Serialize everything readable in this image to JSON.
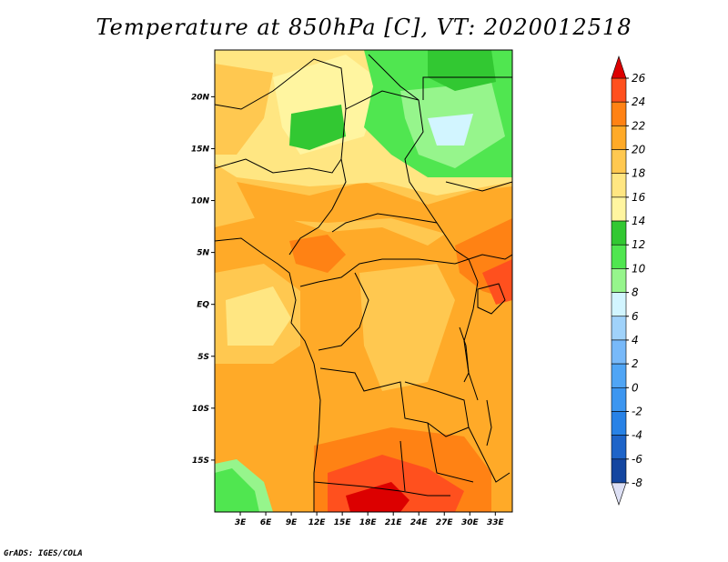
{
  "title": "Temperature at 850hPa [C], VT: 2020012518",
  "credit": "GrADS: IGES/COLA",
  "map": {
    "lat_ticks": [
      {
        "label": "20N",
        "value": 20
      },
      {
        "label": "15N",
        "value": 15
      },
      {
        "label": "10N",
        "value": 10
      },
      {
        "label": "5N",
        "value": 5
      },
      {
        "label": "EQ",
        "value": 0
      },
      {
        "label": "5S",
        "value": -5
      },
      {
        "label": "10S",
        "value": -10
      },
      {
        "label": "15S",
        "value": -15
      }
    ],
    "lon_ticks": [
      {
        "label": "3E",
        "value": 3
      },
      {
        "label": "6E",
        "value": 6
      },
      {
        "label": "9E",
        "value": 9
      },
      {
        "label": "12E",
        "value": 12
      },
      {
        "label": "15E",
        "value": 15
      },
      {
        "label": "18E",
        "value": 18
      },
      {
        "label": "21E",
        "value": 21
      },
      {
        "label": "24E",
        "value": 24
      },
      {
        "label": "27E",
        "value": 27
      },
      {
        "label": "30E",
        "value": 30
      },
      {
        "label": "33E",
        "value": 33
      }
    ],
    "lon_range": [
      0,
      35
    ],
    "lat_range": [
      -20,
      24.5
    ]
  },
  "colorbar": {
    "levels": [
      "-8",
      "-6",
      "-4",
      "-2",
      "0",
      "2",
      "4",
      "6",
      "8",
      "10",
      "12",
      "14",
      "16",
      "18",
      "20",
      "22",
      "24",
      "26"
    ],
    "colors": [
      "#0b1e7a",
      "#1446a0",
      "#1e64c8",
      "#2882e6",
      "#3c96f0",
      "#50a5f5",
      "#78b9f9",
      "#a0d2fa",
      "#d2f5ff",
      "#96f58c",
      "#50e650",
      "#32c832",
      "#fff5a0",
      "#ffe682",
      "#ffc850",
      "#ffaa28",
      "#ff8214",
      "#ff501e",
      "#dc0000"
    ],
    "below_color": "#dde0f5",
    "above_color": "#dc0000"
  }
}
